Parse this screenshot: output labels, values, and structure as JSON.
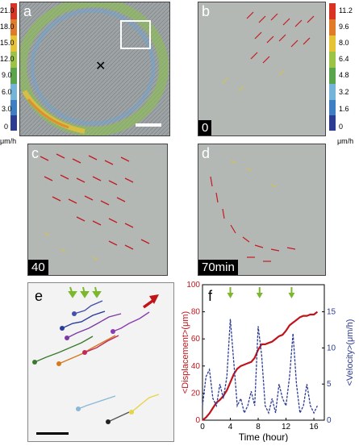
{
  "panels": {
    "a": {
      "label": "a"
    },
    "b": {
      "label": "b",
      "time": "0"
    },
    "c": {
      "label": "c",
      "time": "40"
    },
    "d": {
      "label": "d",
      "time": "70min"
    },
    "e": {
      "label": "e"
    },
    "f": {
      "label": "f"
    }
  },
  "colorbar_left": {
    "ticks": [
      "21.0",
      "18.0",
      "15.0",
      "12.0",
      "9.0",
      "6.0",
      "3.0",
      "0"
    ],
    "unit": "μm/h",
    "colors": [
      "#d93323",
      "#e07b2a",
      "#e6c334",
      "#9bc446",
      "#5aa54b",
      "#73b4d8",
      "#3d7fc2",
      "#2c3c92"
    ]
  },
  "colorbar_right": {
    "ticks": [
      "11.2",
      "9.6",
      "8.0",
      "6.4",
      "4.8",
      "3.2",
      "1.6",
      "0"
    ],
    "unit": "μm/h",
    "colors": [
      "#d93323",
      "#e07b2a",
      "#e6c334",
      "#9bc446",
      "#5aa54b",
      "#73b4d8",
      "#3d7fc2",
      "#2c3c92"
    ]
  },
  "chart_data": {
    "type": "line",
    "xlabel": "Time (hour)",
    "ylabel_left": "<Displacement>(μm)",
    "ylabel_right": "<Velocity>(μm/h)",
    "xlim": [
      0,
      17.5
    ],
    "ylim_left": [
      0,
      100
    ],
    "ylim_right": [
      0,
      18.75
    ],
    "xticks": [
      "0",
      "4",
      "8",
      "12",
      "16"
    ],
    "yticks_left": [
      "0",
      "20",
      "40",
      "60",
      "80",
      "100"
    ],
    "yticks_right": [
      "0",
      "5",
      "10",
      "15"
    ],
    "series": [
      {
        "axis": "left",
        "color": "#c0141b",
        "x": [
          0,
          0.5,
          1,
          1.5,
          2,
          2.5,
          3,
          3.5,
          4,
          4.5,
          5,
          5.5,
          6,
          6.5,
          7,
          7.5,
          8,
          8.5,
          9,
          9.5,
          10,
          10.5,
          11,
          11.5,
          12,
          12.5,
          13,
          13.5,
          14,
          14.5,
          15,
          15.5,
          16,
          16.5
        ],
        "values": [
          0,
          2,
          5,
          9,
          13,
          15,
          18,
          22,
          28,
          34,
          38,
          40,
          41,
          42,
          43,
          46,
          52,
          56,
          56,
          57,
          58,
          60,
          62,
          63,
          66,
          70,
          72,
          74,
          76,
          77,
          77,
          78,
          78,
          80
        ]
      },
      {
        "axis": "right",
        "color": "#2b3a94",
        "x": [
          0,
          0.5,
          1,
          1.5,
          2,
          2.5,
          3,
          3.5,
          4,
          4.5,
          5,
          5.5,
          6,
          6.5,
          7,
          7.5,
          8,
          8.5,
          9,
          9.5,
          10,
          10.5,
          11,
          11.5,
          12,
          12.5,
          13,
          13.5,
          14,
          14.5,
          15,
          15.5,
          16,
          16.5
        ],
        "values": [
          2,
          6,
          7,
          3,
          2,
          5,
          3,
          6,
          14,
          8,
          2,
          3,
          1,
          2,
          4,
          2,
          13,
          9,
          2,
          1,
          3,
          1,
          5,
          3,
          2,
          6,
          12,
          5,
          1,
          2,
          5,
          2,
          1,
          2
        ]
      }
    ],
    "arrows_x": [
      4,
      8.2,
      12.8
    ]
  }
}
